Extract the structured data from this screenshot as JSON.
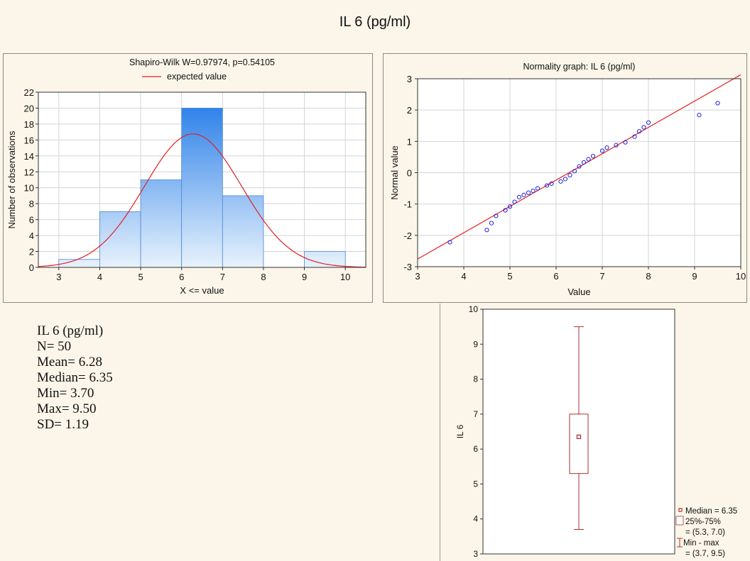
{
  "title": "IL 6 (pg/ml)",
  "stats": {
    "name": "IL 6 (pg/ml)",
    "n": "N= 50",
    "mean": "Mean=  6.28",
    "median": "Median=  6.35",
    "min": "Min=  3.70",
    "max": "Max=  9.50",
    "sd": "SD=  1.19"
  },
  "chart_data": [
    {
      "type": "bar",
      "title": "Shapiro-Wilk W=0.97974, p=0.54105",
      "legend": [
        "expected value"
      ],
      "legend_placement": "top",
      "xlabel": "X <=  value",
      "ylabel": "Number of observations",
      "xlim": [
        2.5,
        10.5
      ],
      "ylim": [
        0,
        22
      ],
      "x_ticks": [
        3,
        4,
        5,
        6,
        7,
        8,
        9,
        10
      ],
      "y_ticks": [
        0,
        2,
        4,
        6,
        8,
        10,
        12,
        14,
        16,
        18,
        20,
        22
      ],
      "bins": [
        {
          "from": 3,
          "to": 4,
          "count": 1
        },
        {
          "from": 4,
          "to": 5,
          "count": 7
        },
        {
          "from": 5,
          "to": 6,
          "count": 11
        },
        {
          "from": 6,
          "to": 7,
          "count": 20
        },
        {
          "from": 7,
          "to": 8,
          "count": 9
        },
        {
          "from": 8,
          "to": 9,
          "count": 0
        },
        {
          "from": 9,
          "to": 10,
          "count": 2
        }
      ],
      "expected_curve": {
        "mean": 6.28,
        "sd": 1.19,
        "n": 50,
        "bin_width": 1
      },
      "grid": true,
      "colors": {
        "bar_top": "#1e78e8",
        "bar_bottom": "#e8f2fc",
        "curve": "#e02020"
      }
    },
    {
      "type": "scatter",
      "title": "Normality graph: IL 6 (pg/ml)",
      "xlabel": "Value",
      "ylabel": "Normal value",
      "xlim": [
        3,
        10
      ],
      "ylim": [
        -3,
        3
      ],
      "x_ticks": [
        3,
        4,
        5,
        6,
        7,
        8,
        9,
        10
      ],
      "y_ticks": [
        -3,
        -2,
        -1,
        0,
        1,
        2,
        3
      ],
      "line": {
        "mean": 6.28,
        "sd": 1.19
      },
      "points": [
        [
          3.7,
          -2.22
        ],
        [
          4.5,
          -1.83
        ],
        [
          4.6,
          -1.61
        ],
        [
          4.7,
          -1.38
        ],
        [
          4.9,
          -1.2
        ],
        [
          5.0,
          -1.08
        ],
        [
          5.1,
          -0.93
        ],
        [
          5.2,
          -0.78
        ],
        [
          5.3,
          -0.71
        ],
        [
          5.4,
          -0.64
        ],
        [
          5.5,
          -0.58
        ],
        [
          5.6,
          -0.5
        ],
        [
          5.8,
          -0.41
        ],
        [
          5.9,
          -0.35
        ],
        [
          6.1,
          -0.28
        ],
        [
          6.2,
          -0.2
        ],
        [
          6.3,
          -0.08
        ],
        [
          6.4,
          0.05
        ],
        [
          6.5,
          0.2
        ],
        [
          6.6,
          0.33
        ],
        [
          6.7,
          0.43
        ],
        [
          6.8,
          0.53
        ],
        [
          7.0,
          0.7
        ],
        [
          7.1,
          0.8
        ],
        [
          7.3,
          0.88
        ],
        [
          7.5,
          0.97
        ],
        [
          7.7,
          1.15
        ],
        [
          7.8,
          1.32
        ],
        [
          7.9,
          1.45
        ],
        [
          8.0,
          1.6
        ],
        [
          9.1,
          1.84
        ],
        [
          9.5,
          2.22
        ]
      ],
      "grid": true,
      "colors": {
        "points": "#2020e0",
        "line": "#e02020"
      }
    },
    {
      "type": "box",
      "ylabel": "IL 6",
      "ylim": [
        3,
        10
      ],
      "y_ticks": [
        3,
        4,
        5,
        6,
        7,
        8,
        9,
        10
      ],
      "median": 6.35,
      "q1": 5.3,
      "q3": 7.0,
      "min": 3.7,
      "max": 9.5,
      "legend": [
        "Median = 6.35",
        "25%-75%",
        "= (5.3, 7.0)",
        "Min - max",
        "= (3.7, 9.5)"
      ],
      "legend_placement": "right",
      "colors": {
        "box": "#b03030"
      }
    }
  ]
}
